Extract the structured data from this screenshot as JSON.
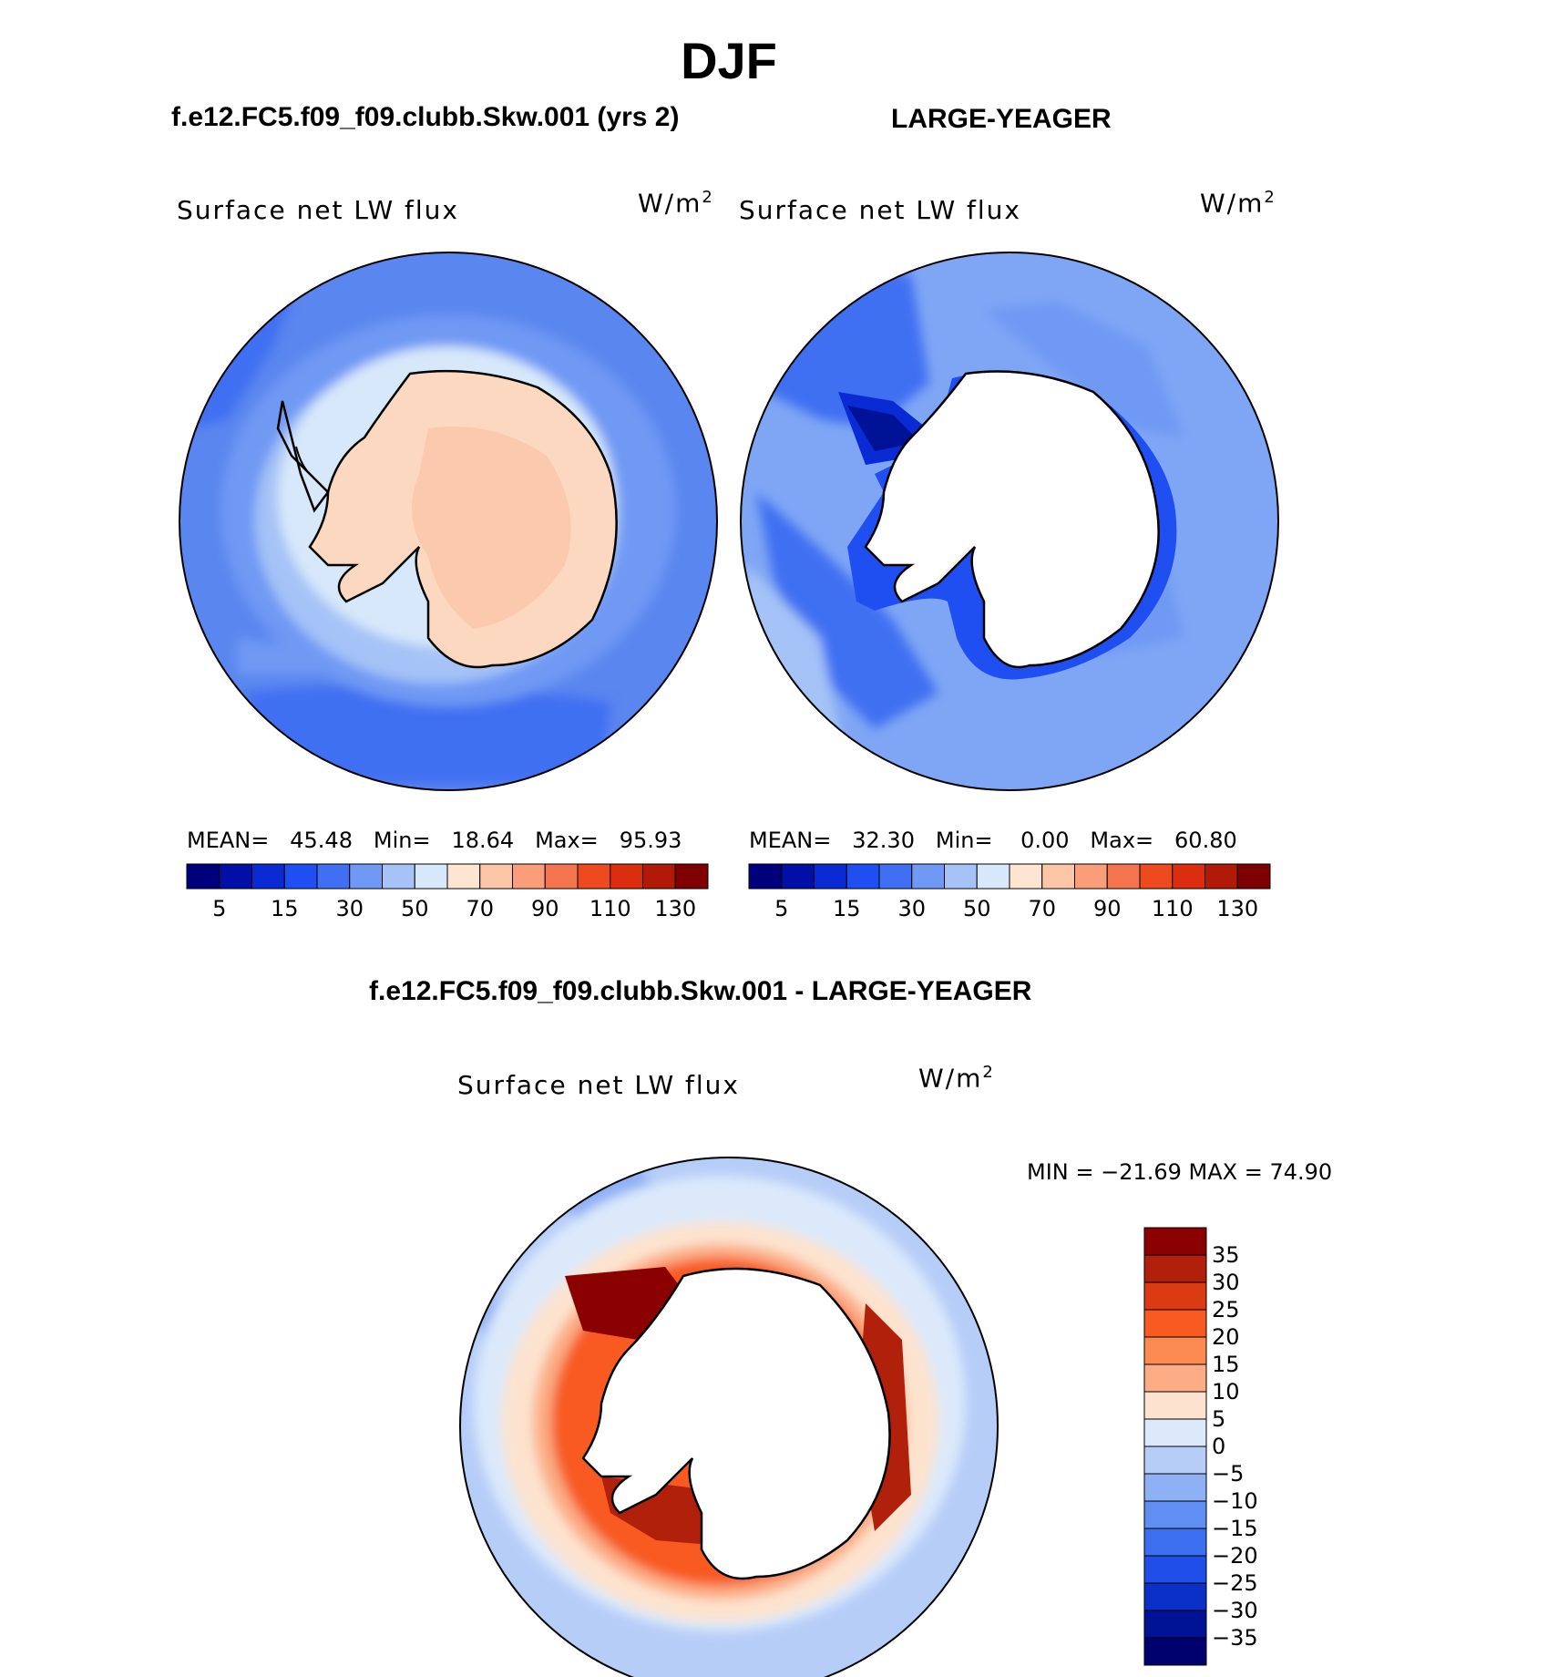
{
  "title": "DJF",
  "panels": {
    "model": {
      "case_title": "f.e12.FC5.f09_f09.clubb.Skw.001 (yrs 2)",
      "variable": "Surface net LW flux",
      "units_base": "W/m",
      "units_exp": "2",
      "stats": {
        "mean_label": "MEAN=",
        "mean": "45.48",
        "min_label": "Min=",
        "min": "18.64",
        "max_label": "Max=",
        "max": "95.93"
      }
    },
    "obs": {
      "case_title": "LARGE-YEAGER",
      "variable": "Surface net LW flux",
      "units_base": "W/m",
      "units_exp": "2",
      "stats": {
        "mean_label": "MEAN=",
        "mean": "32.30",
        "min_label": "Min=",
        "min": "0.00",
        "max_label": "Max=",
        "max": "60.80"
      }
    },
    "diff": {
      "case_title": "f.e12.FC5.f09_f09.clubb.Skw.001 - LARGE-YEAGER",
      "variable": "Surface net LW flux",
      "units_base": "W/m",
      "units_exp": "2",
      "minmax_text": "MIN = −21.69 MAX =   74.90"
    }
  },
  "colorbar_main": {
    "colors": [
      "#00007f",
      "#0010a6",
      "#0a2bd4",
      "#1f4ff0",
      "#3f6ff2",
      "#6f99f4",
      "#a5c3f7",
      "#d8e8fb",
      "#fde5d2",
      "#fcc5a6",
      "#f99e78",
      "#f4754d",
      "#ee4a20",
      "#db2e0e",
      "#b01a07",
      "#7f0000"
    ],
    "labels": [
      "5",
      "15",
      "30",
      "50",
      "70",
      "90",
      "110",
      "130"
    ]
  },
  "colorbar_diff": {
    "colors": [
      "#8b0000",
      "#b0200a",
      "#dc3a12",
      "#f85a22",
      "#fb8a50",
      "#fcad85",
      "#fde3cf",
      "#dbe9fb",
      "#b6cdf8",
      "#8eb0f5",
      "#5f8ff2",
      "#3c6ff0",
      "#1f4fe8",
      "#0a30c8",
      "#001296",
      "#00006e"
    ],
    "labels": [
      "35",
      "30",
      "25",
      "20",
      "15",
      "10",
      "5",
      "0",
      "−5",
      "−10",
      "−15",
      "−20",
      "−25",
      "−30",
      "−35"
    ]
  }
}
